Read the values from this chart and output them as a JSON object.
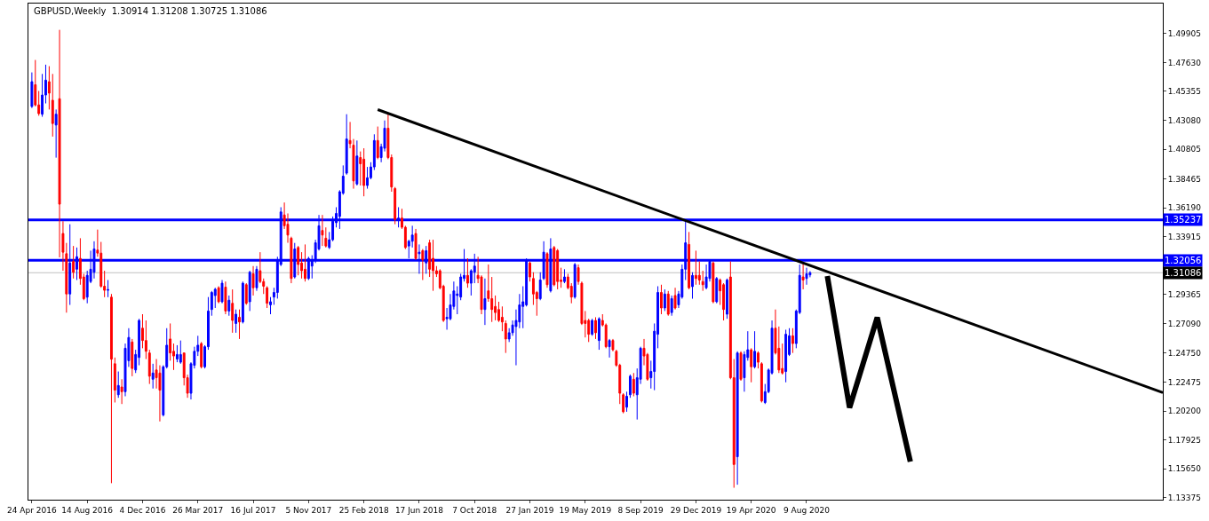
{
  "chart_data": {
    "type": "candlestick",
    "title": "GBPUSD,Weekly  1.30914 1.31208 1.30725 1.31086",
    "x": [
      "2016-04-24",
      "2016-05-01",
      "2016-05-08",
      "2016-05-15",
      "2016-05-22",
      "2016-05-29",
      "2016-06-05",
      "2016-06-12",
      "2016-06-19",
      "2016-06-26",
      "2016-07-03",
      "2016-07-10",
      "2016-07-17",
      "2016-07-24",
      "2016-07-31",
      "2016-08-07",
      "2016-08-14",
      "2016-08-21",
      "2016-08-28",
      "2016-09-04",
      "2016-09-11",
      "2016-09-18",
      "2016-09-25",
      "2016-10-02",
      "2016-10-09",
      "2016-10-16",
      "2016-10-23",
      "2016-10-30",
      "2016-11-06",
      "2016-11-13",
      "2016-11-20",
      "2016-11-27",
      "2016-12-04",
      "2016-12-11",
      "2016-12-18",
      "2016-12-25",
      "2017-01-01",
      "2017-01-08",
      "2017-01-15",
      "2017-01-22",
      "2017-01-29",
      "2017-02-05",
      "2017-02-12",
      "2017-02-19",
      "2017-02-26",
      "2017-03-05",
      "2017-03-12",
      "2017-03-19",
      "2017-03-26",
      "2017-04-02",
      "2017-04-09",
      "2017-04-16",
      "2017-04-23",
      "2017-04-30",
      "2017-05-07",
      "2017-05-14",
      "2017-05-21",
      "2017-05-28",
      "2017-06-04",
      "2017-06-11",
      "2017-06-18",
      "2017-06-25",
      "2017-07-02",
      "2017-07-09",
      "2017-07-16",
      "2017-07-23",
      "2017-07-30",
      "2017-08-06",
      "2017-08-13",
      "2017-08-20",
      "2017-08-27",
      "2017-09-03",
      "2017-09-10",
      "2017-09-17",
      "2017-09-24",
      "2017-10-01",
      "2017-10-08",
      "2017-10-15",
      "2017-10-22",
      "2017-10-29",
      "2017-11-05",
      "2017-11-12",
      "2017-11-19",
      "2017-11-26",
      "2017-12-03",
      "2017-12-10",
      "2017-12-17",
      "2017-12-24",
      "2017-12-31",
      "2018-01-07",
      "2018-01-14",
      "2018-01-21",
      "2018-01-28",
      "2018-02-04",
      "2018-02-11",
      "2018-02-18",
      "2018-02-25",
      "2018-03-04",
      "2018-03-11",
      "2018-03-18",
      "2018-03-25",
      "2018-04-01",
      "2018-04-08",
      "2018-04-15",
      "2018-04-22",
      "2018-04-29",
      "2018-05-06",
      "2018-05-13",
      "2018-05-20",
      "2018-05-27",
      "2018-06-03",
      "2018-06-10",
      "2018-06-17",
      "2018-06-24",
      "2018-07-01",
      "2018-07-08",
      "2018-07-15",
      "2018-07-22",
      "2018-07-29",
      "2018-08-05",
      "2018-08-12",
      "2018-08-19",
      "2018-08-26",
      "2018-09-02",
      "2018-09-09",
      "2018-09-16",
      "2018-09-23",
      "2018-09-30",
      "2018-10-07",
      "2018-10-14",
      "2018-10-21",
      "2018-10-28",
      "2018-11-04",
      "2018-11-11",
      "2018-11-18",
      "2018-11-25",
      "2018-12-02",
      "2018-12-09",
      "2018-12-16",
      "2018-12-23",
      "2018-12-30",
      "2019-01-06",
      "2019-01-13",
      "2019-01-20",
      "2019-01-27",
      "2019-02-03",
      "2019-02-10",
      "2019-02-17",
      "2019-02-24",
      "2019-03-03",
      "2019-03-10",
      "2019-03-17",
      "2019-03-24",
      "2019-03-31",
      "2019-04-07",
      "2019-04-14",
      "2019-04-21",
      "2019-04-28",
      "2019-05-05",
      "2019-05-12",
      "2019-05-19",
      "2019-05-26",
      "2019-06-02",
      "2019-06-09",
      "2019-06-16",
      "2019-06-23",
      "2019-06-30",
      "2019-07-07",
      "2019-07-14",
      "2019-07-21",
      "2019-07-28",
      "2019-08-04",
      "2019-08-11",
      "2019-08-18",
      "2019-08-25",
      "2019-09-01",
      "2019-09-08",
      "2019-09-15",
      "2019-09-22",
      "2019-09-29",
      "2019-10-06",
      "2019-10-13",
      "2019-10-20",
      "2019-10-27",
      "2019-11-03",
      "2019-11-10",
      "2019-11-17",
      "2019-11-24",
      "2019-12-01",
      "2019-12-08",
      "2019-12-15",
      "2019-12-22",
      "2019-12-29",
      "2020-01-05",
      "2020-01-12",
      "2020-01-19",
      "2020-01-26",
      "2020-02-02",
      "2020-02-09",
      "2020-02-16",
      "2020-02-23",
      "2020-03-01",
      "2020-03-08",
      "2020-03-15",
      "2020-03-22",
      "2020-03-29",
      "2020-04-05",
      "2020-04-12",
      "2020-04-19",
      "2020-04-26",
      "2020-05-03",
      "2020-05-10",
      "2020-05-17",
      "2020-05-24",
      "2020-05-31",
      "2020-06-07",
      "2020-06-14",
      "2020-06-21",
      "2020-06-28",
      "2020-07-05",
      "2020-07-12",
      "2020-07-19",
      "2020-07-26",
      "2020-08-02",
      "2020-08-09",
      "2020-08-16"
    ],
    "ohlc": [
      [
        1.4417,
        1.4685,
        1.4405,
        1.4612
      ],
      [
        1.4588,
        1.4783,
        1.4417,
        1.4429
      ],
      [
        1.4429,
        1.4539,
        1.4344,
        1.4361
      ],
      [
        1.4356,
        1.4673,
        1.4336,
        1.4507
      ],
      [
        1.4507,
        1.4746,
        1.4441,
        1.4624
      ],
      [
        1.4612,
        1.4734,
        1.4393,
        1.4522
      ],
      [
        1.4466,
        1.4673,
        1.418,
        1.4283
      ],
      [
        1.4271,
        1.4393,
        1.4014,
        1.4356
      ],
      [
        1.4478,
        1.502,
        1.3229,
        1.3648
      ],
      [
        1.3417,
        1.3514,
        1.3124,
        1.327
      ],
      [
        1.3258,
        1.3343,
        1.2794,
        1.2941
      ],
      [
        1.2941,
        1.349,
        1.2855,
        1.3185
      ],
      [
        1.3197,
        1.3319,
        1.3063,
        1.3112
      ],
      [
        1.3136,
        1.3307,
        1.3051,
        1.3234
      ],
      [
        1.3221,
        1.338,
        1.3014,
        1.3063
      ],
      [
        1.3075,
        1.31,
        1.2892,
        1.2904
      ],
      [
        1.2916,
        1.3124,
        1.2868,
        1.3088
      ],
      [
        1.3039,
        1.3282,
        1.3026,
        1.3136
      ],
      [
        1.3112,
        1.3356,
        1.3063,
        1.3295
      ],
      [
        1.3287,
        1.3448,
        1.3234,
        1.3263
      ],
      [
        1.3263,
        1.3351,
        1.299,
        1.3002
      ],
      [
        1.3002,
        1.3124,
        1.2916,
        1.297
      ],
      [
        1.297,
        1.3051,
        1.2916,
        1.2975
      ],
      [
        1.2916,
        1.2941,
        1.1452,
        1.2428
      ],
      [
        1.2392,
        1.2441,
        1.2087,
        1.2184
      ],
      [
        1.2148,
        1.2331,
        1.2124,
        1.2221
      ],
      [
        1.2209,
        1.227,
        1.2075,
        1.2172
      ],
      [
        1.2172,
        1.2551,
        1.2136,
        1.2514
      ],
      [
        1.2416,
        1.2672,
        1.2367,
        1.2599
      ],
      [
        1.2563,
        1.2587,
        1.2294,
        1.2355
      ],
      [
        1.2343,
        1.2502,
        1.2319,
        1.2465
      ],
      [
        1.2441,
        1.2746,
        1.238,
        1.2733
      ],
      [
        1.2672,
        1.2782,
        1.2514,
        1.2575
      ],
      [
        1.2575,
        1.2733,
        1.2429,
        1.249
      ],
      [
        1.2477,
        1.2502,
        1.2233,
        1.2294
      ],
      [
        1.227,
        1.2392,
        1.2197,
        1.2319
      ],
      [
        1.2343,
        1.2429,
        1.2197,
        1.2282
      ],
      [
        1.2319,
        1.238,
        1.1938,
        1.2184
      ],
      [
        1.1989,
        1.238,
        1.1977,
        1.2368
      ],
      [
        1.2368,
        1.2672,
        1.2355,
        1.2538
      ],
      [
        1.2587,
        1.2709,
        1.2416,
        1.2477
      ],
      [
        1.249,
        1.2551,
        1.2343,
        1.2453
      ],
      [
        1.2429,
        1.2538,
        1.2404,
        1.2465
      ],
      [
        1.2404,
        1.2575,
        1.2392,
        1.2465
      ],
      [
        1.2477,
        1.2477,
        1.2221,
        1.2282
      ],
      [
        1.2282,
        1.2306,
        1.2124,
        1.216
      ],
      [
        1.216,
        1.2404,
        1.2111,
        1.2392
      ],
      [
        1.238,
        1.2526,
        1.2355,
        1.249
      ],
      [
        1.249,
        1.2612,
        1.2453,
        1.2538
      ],
      [
        1.2551,
        1.2563,
        1.2355,
        1.2368
      ],
      [
        1.2368,
        1.2538,
        1.2355,
        1.2526
      ],
      [
        1.2526,
        1.2917,
        1.2502,
        1.2807
      ],
      [
        1.2819,
        1.2965,
        1.277,
        1.2953
      ],
      [
        1.2929,
        1.299,
        1.2831,
        1.2978
      ],
      [
        1.299,
        1.3002,
        1.2868,
        1.288
      ],
      [
        1.288,
        1.3051,
        1.2868,
        1.3026
      ],
      [
        1.2995,
        1.3039,
        1.2782,
        1.2807
      ],
      [
        1.2807,
        1.2929,
        1.277,
        1.2892
      ],
      [
        1.2868,
        1.2977,
        1.2636,
        1.2733
      ],
      [
        1.2709,
        1.2819,
        1.2636,
        1.2782
      ],
      [
        1.2758,
        1.2819,
        1.2587,
        1.2721
      ],
      [
        1.2721,
        1.3039,
        1.2709,
        1.3026
      ],
      [
        1.3014,
        1.3026,
        1.2856,
        1.2868
      ],
      [
        1.288,
        1.3124,
        1.2807,
        1.3112
      ],
      [
        1.31,
        1.3161,
        1.2929,
        1.299
      ],
      [
        1.299,
        1.3161,
        1.2966,
        1.3136
      ],
      [
        1.3124,
        1.327,
        1.3026,
        1.3039
      ],
      [
        1.3039,
        1.3063,
        1.2941,
        1.3002
      ],
      [
        1.299,
        1.3002,
        1.2831,
        1.2868
      ],
      [
        1.2856,
        1.2917,
        1.2782,
        1.288
      ],
      [
        1.2917,
        1.299,
        1.2856,
        1.2953
      ],
      [
        1.2953,
        1.3234,
        1.2905,
        1.3209
      ],
      [
        1.3173,
        1.3624,
        1.3161,
        1.3587
      ],
      [
        1.3563,
        1.3661,
        1.3453,
        1.3478
      ],
      [
        1.349,
        1.3575,
        1.3344,
        1.3405
      ],
      [
        1.338,
        1.3392,
        1.3026,
        1.3063
      ],
      [
        1.3075,
        1.3343,
        1.3063,
        1.3295
      ],
      [
        1.3307,
        1.3319,
        1.3088,
        1.3173
      ],
      [
        1.3185,
        1.327,
        1.3063,
        1.3124
      ],
      [
        1.3136,
        1.3331,
        1.3039,
        1.3063
      ],
      [
        1.3063,
        1.3234,
        1.3051,
        1.3221
      ],
      [
        1.3161,
        1.3246,
        1.3063,
        1.3209
      ],
      [
        1.3209,
        1.3368,
        1.3185,
        1.3344
      ],
      [
        1.3295,
        1.3563,
        1.3283,
        1.3478
      ],
      [
        1.3441,
        1.3563,
        1.3319,
        1.3405
      ],
      [
        1.338,
        1.3465,
        1.3307,
        1.3319
      ],
      [
        1.3307,
        1.3429,
        1.3295,
        1.3368
      ],
      [
        1.3368,
        1.3551,
        1.3356,
        1.3514
      ],
      [
        1.3502,
        1.3624,
        1.3465,
        1.3575
      ],
      [
        1.3551,
        1.3758,
        1.3453,
        1.3746
      ],
      [
        1.3734,
        1.3953,
        1.3722,
        1.3868
      ],
      [
        1.3892,
        1.4356,
        1.388,
        1.4161
      ],
      [
        1.4149,
        1.4295,
        1.4088,
        1.4124
      ],
      [
        1.4112,
        1.4161,
        1.377,
        1.3831
      ],
      [
        1.3807,
        1.4149,
        1.3795,
        1.4027
      ],
      [
        1.4015,
        1.4063,
        1.3795,
        1.3966
      ],
      [
        1.4002,
        1.4088,
        1.371,
        1.3795
      ],
      [
        1.3795,
        1.3941,
        1.377,
        1.3856
      ],
      [
        1.3856,
        1.3978,
        1.3844,
        1.3941
      ],
      [
        1.3941,
        1.4198,
        1.3917,
        1.4149
      ],
      [
        1.4149,
        1.4259,
        1.4002,
        1.4015
      ],
      [
        1.4015,
        1.4124,
        1.3978,
        1.41
      ],
      [
        1.4088,
        1.4307,
        1.4063,
        1.4246
      ],
      [
        1.4246,
        1.4368,
        1.4002,
        1.4015
      ],
      [
        1.4015,
        1.4039,
        1.3746,
        1.3783
      ],
      [
        1.3771,
        1.3783,
        1.349,
        1.3527
      ],
      [
        1.3527,
        1.3624,
        1.3465,
        1.3539
      ],
      [
        1.3539,
        1.3612,
        1.3453,
        1.3466
      ],
      [
        1.3466,
        1.3478,
        1.3295,
        1.3307
      ],
      [
        1.3319,
        1.3368,
        1.3221,
        1.3356
      ],
      [
        1.3356,
        1.3478,
        1.3307,
        1.3405
      ],
      [
        1.3417,
        1.3453,
        1.3209,
        1.3221
      ],
      [
        1.3258,
        1.3331,
        1.31,
        1.327
      ],
      [
        1.3282,
        1.3295,
        1.3051,
        1.3209
      ],
      [
        1.3185,
        1.3319,
        1.31,
        1.3282
      ],
      [
        1.3344,
        1.3368,
        1.3075,
        1.3136
      ],
      [
        1.3222,
        1.3368,
        1.2966,
        1.3124
      ],
      [
        1.3124,
        1.3161,
        1.3075,
        1.31
      ],
      [
        1.3124,
        1.3136,
        1.2978,
        1.299
      ],
      [
        1.3002,
        1.3014,
        1.2721,
        1.2733
      ],
      [
        1.2746,
        1.2831,
        1.266,
        1.2758
      ],
      [
        1.2746,
        1.2941,
        1.2734,
        1.2855
      ],
      [
        1.2843,
        1.3039,
        1.2819,
        1.2965
      ],
      [
        1.2929,
        1.3002,
        1.2782,
        1.2941
      ],
      [
        1.2917,
        1.31,
        1.2892,
        1.3075
      ],
      [
        1.3063,
        1.3295,
        1.3039,
        1.3088
      ],
      [
        1.3088,
        1.3222,
        1.299,
        1.3026
      ],
      [
        1.3026,
        1.3136,
        1.2929,
        1.3124
      ],
      [
        1.3112,
        1.3258,
        1.3026,
        1.3161
      ],
      [
        1.3088,
        1.3234,
        1.3026,
        1.3063
      ],
      [
        1.3075,
        1.3088,
        1.2782,
        1.2819
      ],
      [
        1.2819,
        1.3063,
        1.2697,
        1.2904
      ],
      [
        1.2966,
        1.3173,
        1.288,
        1.2905
      ],
      [
        1.2904,
        1.3075,
        1.2721,
        1.2819
      ],
      [
        1.2843,
        1.2929,
        1.2734,
        1.2795
      ],
      [
        1.2819,
        1.288,
        1.2721,
        1.2733
      ],
      [
        1.2758,
        1.2843,
        1.2648,
        1.2721
      ],
      [
        1.2709,
        1.2733,
        1.2477,
        1.2587
      ],
      [
        1.2587,
        1.2672,
        1.2563,
        1.2636
      ],
      [
        1.2636,
        1.2733,
        1.2612,
        1.2697
      ],
      [
        1.2685,
        1.2819,
        1.238,
        1.2733
      ],
      [
        1.2721,
        1.2941,
        1.2672,
        1.2855
      ],
      [
        1.2843,
        1.3002,
        1.2672,
        1.288
      ],
      [
        1.2855,
        1.3222,
        1.2843,
        1.3209
      ],
      [
        1.3185,
        1.3197,
        1.3039,
        1.3075
      ],
      [
        1.3063,
        1.3112,
        1.2855,
        1.2941
      ],
      [
        1.2953,
        1.2965,
        1.277,
        1.2904
      ],
      [
        1.2904,
        1.3112,
        1.2892,
        1.3051
      ],
      [
        1.3063,
        1.3356,
        1.3051,
        1.327
      ],
      [
        1.3258,
        1.327,
        1.299,
        1.3014
      ],
      [
        1.2966,
        1.338,
        1.2953,
        1.3295
      ],
      [
        1.3307,
        1.3319,
        1.3002,
        1.3014
      ],
      [
        1.3283,
        1.3295,
        1.2978,
        1.3039
      ],
      [
        1.3051,
        1.3148,
        1.299,
        1.3039
      ],
      [
        1.3039,
        1.3136,
        1.3026,
        1.3075
      ],
      [
        1.3075,
        1.31,
        1.2978,
        1.299
      ],
      [
        1.3002,
        1.3026,
        1.2868,
        1.2917
      ],
      [
        1.2917,
        1.3185,
        1.2904,
        1.3173
      ],
      [
        1.3148,
        1.3173,
        1.3014,
        1.3039
      ],
      [
        1.3026,
        1.3039,
        1.2697,
        1.2709
      ],
      [
        1.2733,
        1.2807,
        1.2599,
        1.2709
      ],
      [
        1.2733,
        1.2746,
        1.2563,
        1.2624
      ],
      [
        1.2624,
        1.2746,
        1.2612,
        1.2733
      ],
      [
        1.2733,
        1.2758,
        1.2587,
        1.2636
      ],
      [
        1.2575,
        1.2758,
        1.2502,
        1.2746
      ],
      [
        1.2733,
        1.2782,
        1.2685,
        1.2697
      ],
      [
        1.2697,
        1.2709,
        1.2514,
        1.2526
      ],
      [
        1.2526,
        1.2587,
        1.2441,
        1.2575
      ],
      [
        1.2575,
        1.2587,
        1.249,
        1.2502
      ],
      [
        1.249,
        1.2502,
        1.2368,
        1.238
      ],
      [
        1.238,
        1.2392,
        1.2075,
        1.216
      ],
      [
        1.2148,
        1.216,
        1.2002,
        1.2014
      ],
      [
        1.205,
        1.2172,
        1.2014,
        1.2136
      ],
      [
        1.2148,
        1.2307,
        1.2124,
        1.2294
      ],
      [
        1.227,
        1.2319,
        1.2136,
        1.216
      ],
      [
        1.2148,
        1.2355,
        1.1953,
        1.2282
      ],
      [
        1.227,
        1.2526,
        1.2233,
        1.2514
      ],
      [
        1.2514,
        1.2587,
        1.238,
        1.2453
      ],
      [
        1.2465,
        1.2477,
        1.2258,
        1.227
      ],
      [
        1.2282,
        1.2416,
        1.2197,
        1.2331
      ],
      [
        1.2331,
        1.2709,
        1.2184,
        1.2648
      ],
      [
        1.2624,
        1.3002,
        1.2514,
        1.2953
      ],
      [
        1.2953,
        1.3014,
        1.2782,
        1.2831
      ],
      [
        1.2831,
        1.2977,
        1.2807,
        1.2941
      ],
      [
        1.2941,
        1.2965,
        1.277,
        1.2782
      ],
      [
        1.2795,
        1.2929,
        1.277,
        1.2905
      ],
      [
        1.2929,
        1.299,
        1.2819,
        1.2831
      ],
      [
        1.2856,
        1.2965,
        1.2831,
        1.2941
      ],
      [
        1.2917,
        1.3173,
        1.2904,
        1.3136
      ],
      [
        1.3136,
        1.3527,
        1.3051,
        1.3344
      ],
      [
        1.3331,
        1.3429,
        1.2978,
        1.299
      ],
      [
        1.2999,
        1.3112,
        1.2904,
        1.3087
      ],
      [
        1.3088,
        1.3282,
        1.3014,
        1.3063
      ],
      [
        1.3088,
        1.3197,
        1.3014,
        1.3051
      ],
      [
        1.3039,
        1.3124,
        1.2966,
        1.3014
      ],
      [
        1.299,
        1.3173,
        1.2978,
        1.3075
      ],
      [
        1.3063,
        1.3209,
        1.3039,
        1.3197
      ],
      [
        1.3185,
        1.3197,
        1.2868,
        1.288
      ],
      [
        1.288,
        1.3075,
        1.2868,
        1.3063
      ],
      [
        1.3051,
        1.3063,
        1.2855,
        1.2966
      ],
      [
        1.3014,
        1.3026,
        1.2733,
        1.2819
      ],
      [
        1.2782,
        1.3063,
        1.2746,
        1.3051
      ],
      [
        1.3075,
        1.3197,
        1.227,
        1.2282
      ],
      [
        1.2282,
        1.2429,
        1.1416,
        1.1599
      ],
      [
        1.166,
        1.249,
        1.144,
        1.2477
      ],
      [
        1.2477,
        1.249,
        1.2258,
        1.227
      ],
      [
        1.2282,
        1.249,
        1.2172,
        1.2465
      ],
      [
        1.2441,
        1.2648,
        1.2416,
        1.2502
      ],
      [
        1.2502,
        1.2514,
        1.2246,
        1.2368
      ],
      [
        1.2368,
        1.2648,
        1.2355,
        1.249
      ],
      [
        1.2477,
        1.249,
        1.2355,
        1.2404
      ],
      [
        1.2392,
        1.2404,
        1.2087,
        1.2099
      ],
      [
        1.2087,
        1.2233,
        1.2075,
        1.2172
      ],
      [
        1.2172,
        1.2355,
        1.216,
        1.2343
      ],
      [
        1.2319,
        1.2733,
        1.2307,
        1.2672
      ],
      [
        1.2672,
        1.2819,
        1.2465,
        1.2477
      ],
      [
        1.2514,
        1.2685,
        1.2319,
        1.2343
      ],
      [
        1.2355,
        1.2551,
        1.2307,
        1.2319
      ],
      [
        1.2331,
        1.266,
        1.2246,
        1.2624
      ],
      [
        1.2465,
        1.2672,
        1.2453,
        1.2612
      ],
      [
        1.2612,
        1.2672,
        1.2477,
        1.2551
      ],
      [
        1.2551,
        1.2819,
        1.2514,
        1.2807
      ],
      [
        1.2795,
        1.3173,
        1.2783,
        1.3088
      ],
      [
        1.3075,
        1.3185,
        1.2978,
        1.3051
      ],
      [
        1.3063,
        1.3148,
        1.3014,
        1.31
      ],
      [
        1.30914,
        1.31208,
        1.30725,
        1.31086
      ]
    ],
    "colors": [
      "#0000ff",
      "#ff0000",
      "#ff0000",
      "#0000ff",
      "#0000ff",
      "#ff0000",
      "#ff0000",
      "#0000ff",
      "#ff0000",
      "#ff0000",
      "#ff0000",
      "#0000ff",
      "#ff0000",
      "#0000ff",
      "#ff0000",
      "#ff0000",
      "#0000ff",
      "#0000ff",
      "#0000ff",
      "#ff0000",
      "#ff0000",
      "#ff0000",
      "#0000ff",
      "#ff0000",
      "#ff0000",
      "#0000ff",
      "#ff0000",
      "#0000ff",
      "#0000ff",
      "#ff0000",
      "#0000ff",
      "#0000ff",
      "#ff0000",
      "#ff0000",
      "#ff0000",
      "#0000ff",
      "#ff0000",
      "#ff0000",
      "#0000ff",
      "#0000ff",
      "#ff0000",
      "#ff0000",
      "#0000ff",
      "#0000ff",
      "#ff0000",
      "#ff0000",
      "#0000ff",
      "#0000ff",
      "#0000ff",
      "#ff0000",
      "#0000ff",
      "#0000ff",
      "#0000ff",
      "#0000ff",
      "#ff0000",
      "#0000ff",
      "#ff0000",
      "#0000ff",
      "#ff0000",
      "#0000ff",
      "#ff0000",
      "#0000ff",
      "#ff0000",
      "#0000ff",
      "#ff0000",
      "#0000ff",
      "#ff0000",
      "#ff0000",
      "#ff0000",
      "#0000ff",
      "#0000ff",
      "#0000ff",
      "#0000ff",
      "#ff0000",
      "#ff0000",
      "#ff0000",
      "#0000ff",
      "#ff0000",
      "#ff0000",
      "#ff0000",
      "#0000ff",
      "#0000ff",
      "#0000ff",
      "#0000ff",
      "#ff0000",
      "#ff0000",
      "#0000ff",
      "#0000ff",
      "#0000ff",
      "#0000ff",
      "#0000ff",
      "#0000ff",
      "#ff0000",
      "#ff0000",
      "#0000ff",
      "#ff0000",
      "#ff0000",
      "#0000ff",
      "#0000ff",
      "#0000ff",
      "#ff0000",
      "#0000ff",
      "#0000ff",
      "#ff0000",
      "#ff0000",
      "#ff0000",
      "#0000ff",
      "#ff0000",
      "#ff0000",
      "#0000ff",
      "#0000ff",
      "#ff0000",
      "#0000ff",
      "#ff0000",
      "#0000ff",
      "#ff0000",
      "#ff0000",
      "#ff0000",
      "#ff0000",
      "#ff0000",
      "#0000ff",
      "#0000ff",
      "#0000ff",
      "#0000ff",
      "#0000ff",
      "#0000ff",
      "#ff0000",
      "#0000ff",
      "#0000ff",
      "#ff0000",
      "#ff0000",
      "#0000ff",
      "#ff0000",
      "#ff0000",
      "#ff0000",
      "#ff0000",
      "#ff0000",
      "#ff0000",
      "#0000ff",
      "#0000ff",
      "#0000ff",
      "#0000ff",
      "#0000ff",
      "#0000ff",
      "#ff0000",
      "#ff0000",
      "#ff0000",
      "#0000ff",
      "#0000ff",
      "#ff0000",
      "#0000ff",
      "#ff0000",
      "#ff0000",
      "#ff0000",
      "#0000ff",
      "#ff0000",
      "#ff0000",
      "#0000ff",
      "#ff0000",
      "#ff0000",
      "#ff0000",
      "#ff0000",
      "#0000ff",
      "#ff0000",
      "#0000ff",
      "#ff0000",
      "#ff0000",
      "#0000ff",
      "#ff0000",
      "#ff0000",
      "#ff0000",
      "#ff0000",
      "#0000ff",
      "#0000ff",
      "#ff0000",
      "#0000ff",
      "#0000ff",
      "#ff0000",
      "#ff0000",
      "#0000ff",
      "#0000ff",
      "#0000ff",
      "#ff0000",
      "#0000ff",
      "#ff0000",
      "#0000ff",
      "#ff0000",
      "#0000ff",
      "#0000ff",
      "#0000ff",
      "#ff0000",
      "#0000ff",
      "#ff0000",
      "#ff0000",
      "#ff0000",
      "#0000ff",
      "#0000ff",
      "#ff0000",
      "#0000ff",
      "#ff0000",
      "#ff0000",
      "#0000ff",
      "#ff0000",
      "#ff0000",
      "#0000ff",
      "#ff0000",
      "#0000ff",
      "#0000ff",
      "#ff0000",
      "#0000ff",
      "#ff0000",
      "#ff0000",
      "#0000ff",
      "#0000ff",
      "#0000ff",
      "#ff0000",
      "#ff0000",
      "#ff0000",
      "#0000ff",
      "#0000ff",
      "#ff0000",
      "#0000ff",
      "#0000ff",
      "#ff0000",
      "#0000ff",
      "#0000ff"
    ],
    "series": [
      {
        "type": "line",
        "x": [
          "2018-03-25",
          "2022-07-31"
        ],
        "values": [
          1.4392,
          1.2165
        ],
        "color": "#000000"
      },
      {
        "type": "line",
        "x": [
          "2020-09-20",
          "2020-11-04",
          "2020-12-30",
          "2021-03-07"
        ],
        "values": [
          1.3083,
          1.2046,
          1.2756,
          1.1621
        ],
        "color": "#000000"
      }
    ],
    "xlim": [
      "2016-04-17",
      "2022-07-31"
    ],
    "xticks": [
      {
        "value": "2016-04-24",
        "label": "24 Apr 2016"
      },
      {
        "value": "2016-08-14",
        "label": "14 Aug 2016"
      },
      {
        "value": "2016-12-04",
        "label": "4 Dec 2016"
      },
      {
        "value": "2017-03-26",
        "label": "26 Mar 2017"
      },
      {
        "value": "2017-07-16",
        "label": "16 Jul 2017"
      },
      {
        "value": "2017-11-05",
        "label": "5 Nov 2017"
      },
      {
        "value": "2018-02-25",
        "label": "25 Feb 2018"
      },
      {
        "value": "2018-06-17",
        "label": "17 Jun 2018"
      },
      {
        "value": "2018-10-07",
        "label": "7 Oct 2018"
      },
      {
        "value": "2019-01-27",
        "label": "27 Jan 2019"
      },
      {
        "value": "2019-05-19",
        "label": "19 May 2019"
      },
      {
        "value": "2019-09-08",
        "label": "8 Sep 2019"
      },
      {
        "value": "2019-12-29",
        "label": "29 Dec 2019"
      },
      {
        "value": "2020-04-19",
        "label": "19 Apr 2020"
      },
      {
        "value": "2020-08-09",
        "label": "9 Aug 2020"
      }
    ],
    "ylim": [
      1.1322,
      1.5227
    ],
    "yticks": [
      1.49905,
      {
        "value": 1.4763,
        "label": "1.47630"
      },
      1.45355,
      {
        "value": 1.4308,
        "label": "1.43080"
      },
      1.40805,
      1.38465,
      {
        "value": 1.3619,
        "label": "1.36190"
      },
      1.33915,
      1.29365,
      {
        "value": 1.2709,
        "label": "1.27090"
      },
      {
        "value": 1.2475,
        "label": "1.24750"
      },
      1.22475,
      {
        "value": 1.202,
        "label": "1.20200"
      },
      1.17925,
      {
        "value": 1.1565,
        "label": "1.15650"
      },
      1.13375
    ],
    "ref_lines": [
      {
        "axis": "y",
        "value": 1.35237,
        "label": "1.35237",
        "color": "#0000ff"
      },
      {
        "axis": "y",
        "value": 1.32056,
        "label": "1.32056",
        "color": "#0000ff"
      },
      {
        "axis": "y",
        "value": 1.31086,
        "label": "1.31086",
        "color": "#c0c0c0"
      }
    ],
    "grid": false
  }
}
